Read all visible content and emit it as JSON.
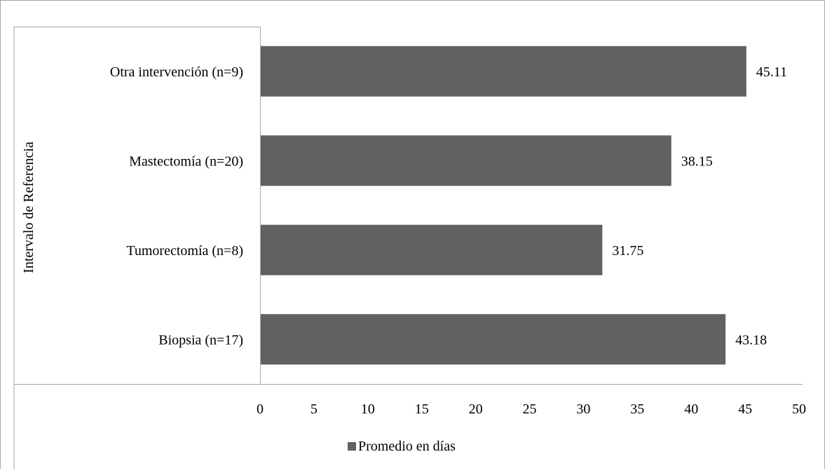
{
  "chart_data": {
    "type": "bar",
    "orientation": "horizontal",
    "categories": [
      "Otra intervención (n=9)",
      "Mastectomía (n=20)",
      "Tumorectomía (n=8)",
      "Biopsia (n=17)"
    ],
    "series": [
      {
        "name": "Promedio en días",
        "values": [
          45.11,
          38.15,
          31.75,
          43.18
        ],
        "color": "#616161"
      }
    ],
    "value_labels": [
      "45.11",
      "38.15",
      "31.75",
      "43.18"
    ],
    "title": "",
    "xlabel": "",
    "ylabel": "Intervalo de Referencia",
    "xlim": [
      0,
      50
    ],
    "x_ticks": [
      0,
      5,
      10,
      15,
      20,
      25,
      30,
      35,
      40,
      45,
      50
    ],
    "grid": false,
    "legend": {
      "position": "bottom-center",
      "entries": [
        "Promedio en días"
      ]
    }
  }
}
